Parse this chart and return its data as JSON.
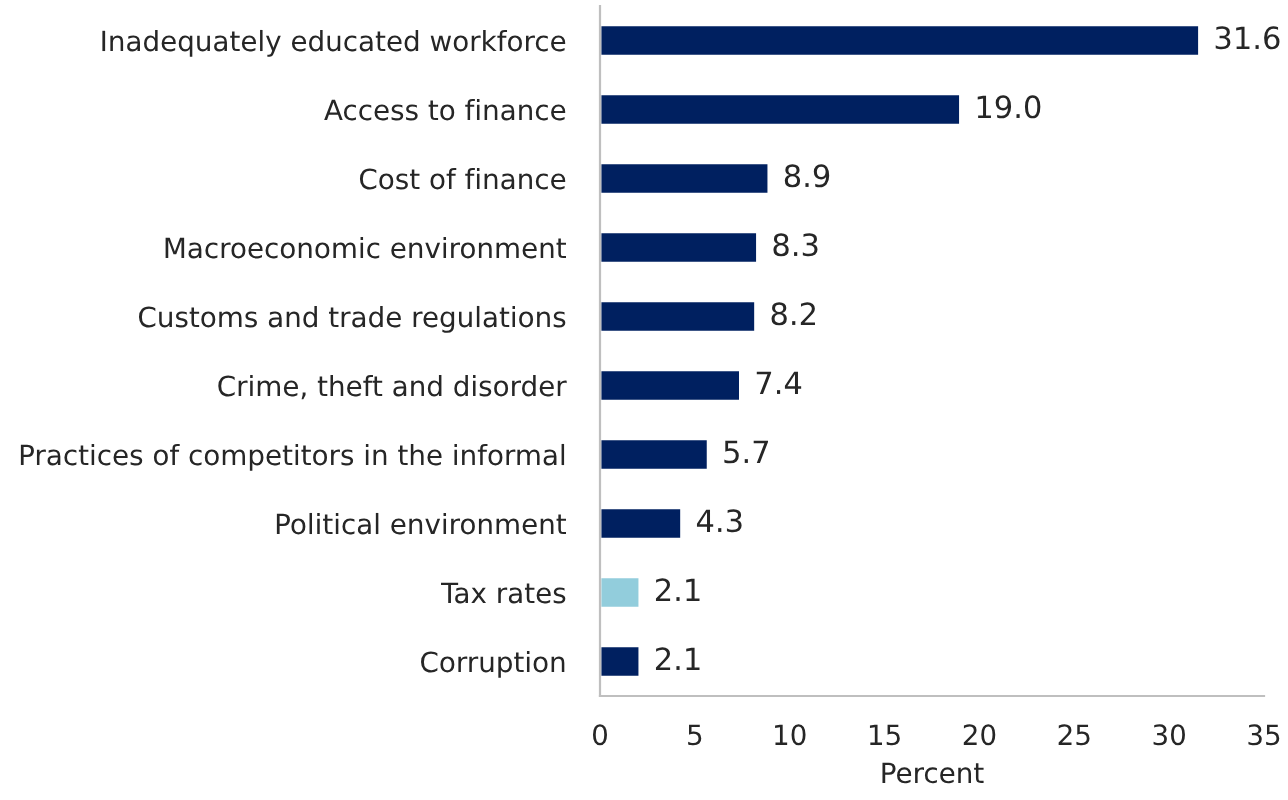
{
  "chart_data": {
    "type": "bar",
    "orientation": "horizontal",
    "xlabel": "Percent",
    "categories": [
      "Inadequately educated workforce",
      "Access to finance",
      "Cost of finance",
      "Macroeconomic environment",
      "Customs and trade regulations",
      "Crime, theft and disorder",
      "Practices of competitors in the informal",
      "Political environment",
      "Tax rates",
      "Corruption"
    ],
    "values": [
      31.6,
      19.0,
      8.9,
      8.3,
      8.2,
      7.4,
      5.7,
      4.3,
      2.1,
      2.1
    ],
    "value_labels": [
      "31.6",
      "19.0",
      "8.9",
      "8.3",
      "8.2",
      "7.4",
      "5.7",
      "4.3",
      "2.1",
      "2.1"
    ],
    "colors": [
      "#002060",
      "#002060",
      "#002060",
      "#002060",
      "#002060",
      "#002060",
      "#002060",
      "#002060",
      "#92cddc",
      "#002060"
    ],
    "xlim": [
      0,
      35
    ],
    "xticks": [
      0,
      5,
      10,
      15,
      20,
      25,
      30,
      35
    ],
    "grid": false,
    "legend": false
  }
}
